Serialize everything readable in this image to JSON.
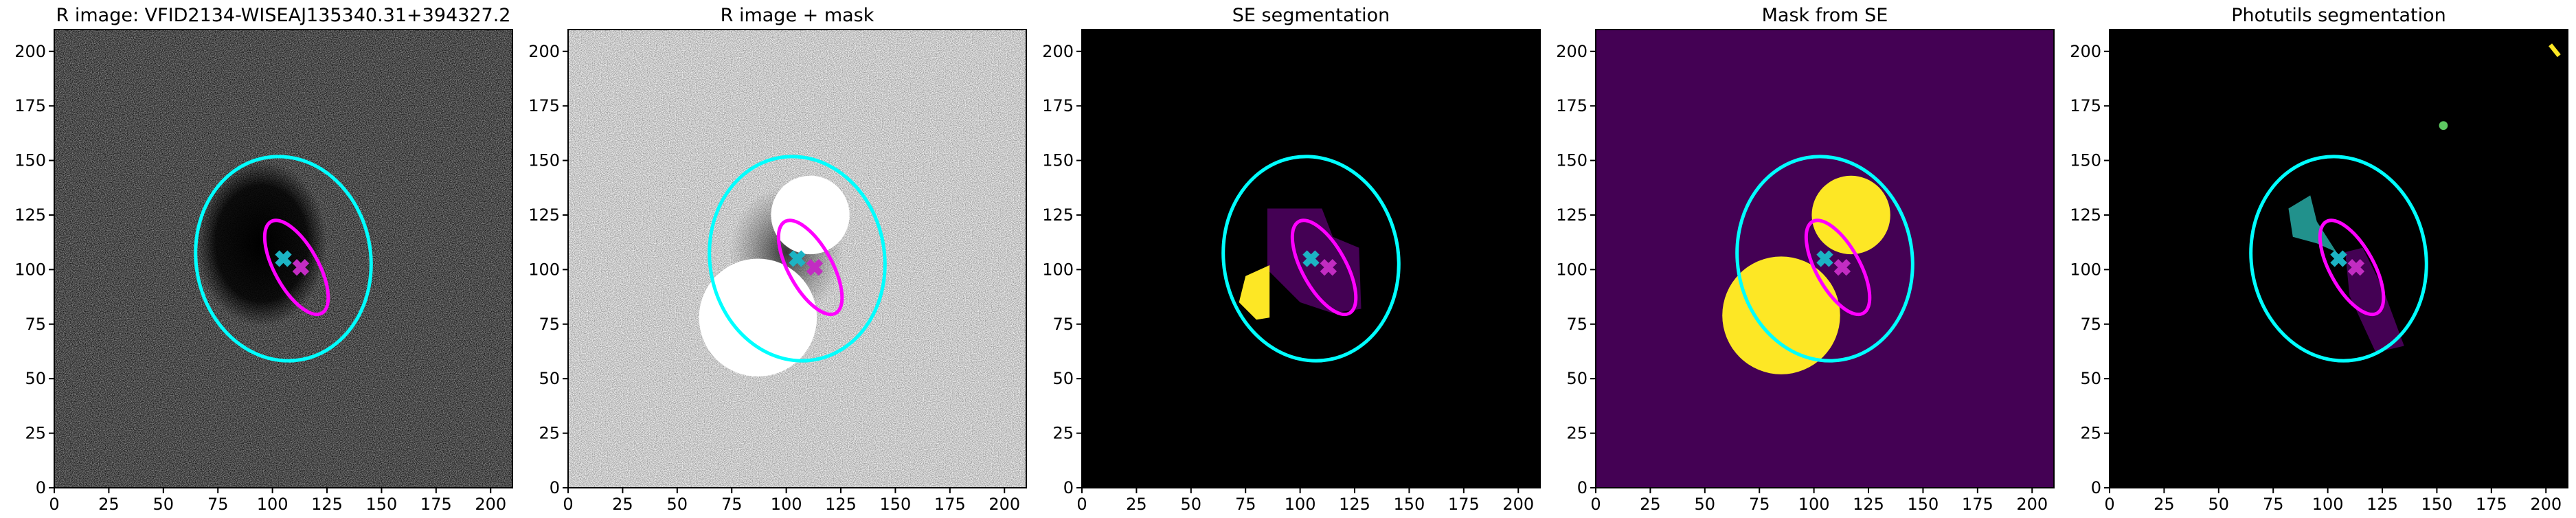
{
  "chart_data": [
    {
      "type": "image",
      "title": "R image: VFID2134-WISEAJ135340.31+394327.2",
      "background": "noise-dark",
      "xlim": [
        0,
        210
      ],
      "ylim": [
        0,
        210
      ],
      "xticks": [
        0,
        25,
        50,
        75,
        100,
        125,
        150,
        175,
        200
      ],
      "yticks": [
        0,
        25,
        50,
        75,
        100,
        125,
        150,
        175,
        200
      ],
      "ellipses": [
        {
          "x": 105,
          "y": 105,
          "width": 94,
          "height": 80,
          "angle": 100,
          "color": "#00ffff"
        },
        {
          "x": 111,
          "y": 101,
          "width": 48,
          "height": 20,
          "angle": 119,
          "color": "#ff00ff"
        }
      ],
      "markers": [
        {
          "x": 105,
          "y": 105,
          "color": "#1cb4c4"
        },
        {
          "x": 113,
          "y": 101,
          "color": "#c22cc2"
        }
      ]
    },
    {
      "type": "image",
      "title": "R image + mask",
      "background": "noise-light",
      "xlim": [
        0,
        210
      ],
      "ylim": [
        0,
        210
      ],
      "xticks": [
        0,
        25,
        50,
        75,
        100,
        125,
        150,
        175,
        200
      ],
      "yticks": [
        0,
        25,
        50,
        75,
        100,
        125,
        150,
        175,
        200
      ],
      "ellipses": [
        {
          "x": 105,
          "y": 105,
          "width": 94,
          "height": 80,
          "angle": 100,
          "color": "#00ffff"
        },
        {
          "x": 111,
          "y": 101,
          "width": 48,
          "height": 20,
          "angle": 119,
          "color": "#ff00ff"
        }
      ],
      "markers": [
        {
          "x": 105,
          "y": 105,
          "color": "#1cb4c4"
        },
        {
          "x": 113,
          "y": 101,
          "color": "#c22cc2"
        }
      ]
    },
    {
      "type": "image",
      "title": "SE segmentation",
      "background": "black",
      "xlim": [
        0,
        210
      ],
      "ylim": [
        0,
        210
      ],
      "xticks": [
        0,
        25,
        50,
        75,
        100,
        125,
        150,
        175,
        200
      ],
      "yticks": [
        0,
        25,
        50,
        75,
        100,
        125,
        150,
        175,
        200
      ],
      "ellipses": [
        {
          "x": 105,
          "y": 105,
          "width": 94,
          "height": 80,
          "angle": 100,
          "color": "#00ffff"
        },
        {
          "x": 111,
          "y": 101,
          "width": 48,
          "height": 20,
          "angle": 119,
          "color": "#ff00ff"
        }
      ],
      "markers": [
        {
          "x": 105,
          "y": 105,
          "color": "#1cb4c4"
        },
        {
          "x": 113,
          "y": 101,
          "color": "#c22cc2"
        }
      ]
    },
    {
      "type": "image",
      "title": "Mask from SE",
      "background": "#440154",
      "xlim": [
        0,
        210
      ],
      "ylim": [
        0,
        210
      ],
      "xticks": [
        0,
        25,
        50,
        75,
        100,
        125,
        150,
        175,
        200
      ],
      "yticks": [
        0,
        25,
        50,
        75,
        100,
        125,
        150,
        175,
        200
      ],
      "ellipses": [
        {
          "x": 105,
          "y": 105,
          "width": 94,
          "height": 80,
          "angle": 100,
          "color": "#00ffff"
        },
        {
          "x": 111,
          "y": 101,
          "width": 48,
          "height": 20,
          "angle": 119,
          "color": "#ff00ff"
        }
      ],
      "markers": [
        {
          "x": 105,
          "y": 105,
          "color": "#1cb4c4"
        },
        {
          "x": 113,
          "y": 101,
          "color": "#c22cc2"
        }
      ]
    },
    {
      "type": "image",
      "title": "Photutils segmentation",
      "background": "black",
      "xlim": [
        0,
        210
      ],
      "ylim": [
        0,
        210
      ],
      "xticks": [
        0,
        25,
        50,
        75,
        100,
        125,
        150,
        175,
        200
      ],
      "yticks": [
        0,
        25,
        50,
        75,
        100,
        125,
        150,
        175,
        200
      ],
      "ellipses": [
        {
          "x": 105,
          "y": 105,
          "width": 94,
          "height": 80,
          "angle": 100,
          "color": "#00ffff"
        },
        {
          "x": 111,
          "y": 101,
          "width": 48,
          "height": 20,
          "angle": 119,
          "color": "#ff00ff"
        }
      ],
      "markers": [
        {
          "x": 105,
          "y": 105,
          "color": "#1cb4c4"
        },
        {
          "x": 113,
          "y": 101,
          "color": "#c22cc2"
        }
      ]
    }
  ]
}
